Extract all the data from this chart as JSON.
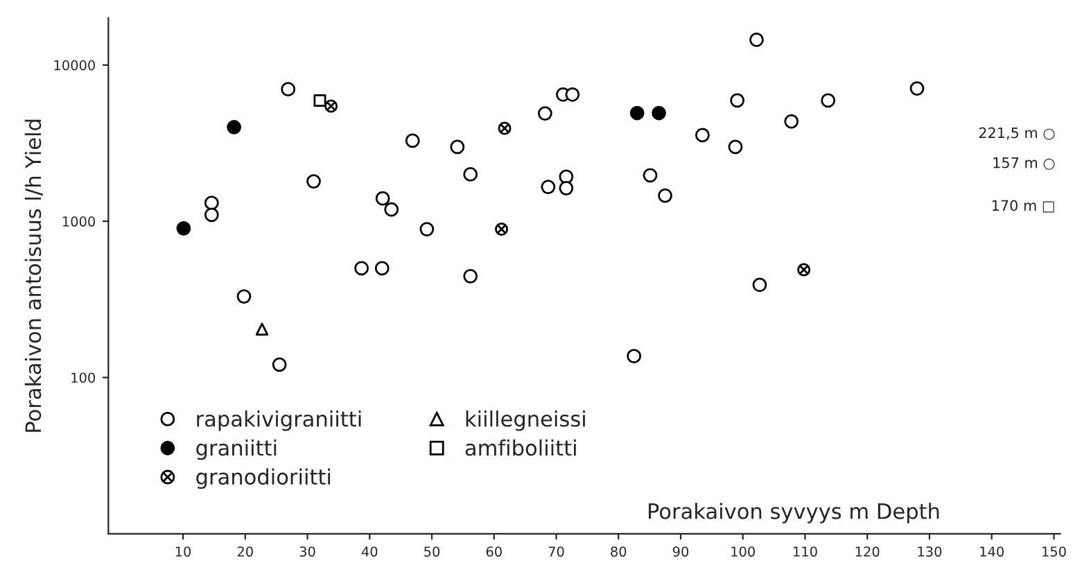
{
  "chart_data": {
    "type": "scatter",
    "xlabel": "Porakaivon syvyys m Depth",
    "ylabel": "Porakaivon antoisuus l/h Yield",
    "log": "y",
    "xlim": [
      -2,
      151
    ],
    "xticks": [
      10,
      20,
      30,
      40,
      50,
      60,
      70,
      80,
      90,
      100,
      110,
      120,
      130,
      140,
      150
    ],
    "ylim": [
      10,
      20000
    ],
    "yticks": [
      100,
      1000,
      10000
    ],
    "grid": false,
    "legend": "bottom left",
    "series": [
      {
        "name": "rapakivigraniitti",
        "color": "#ffffff",
        "marker": "circle",
        "x": [
          26.9,
          14.6,
          14.6,
          19.8,
          25.5,
          31.0,
          38.7,
          42.0,
          42.1,
          43.5,
          49.2,
          46.9,
          54.1,
          56.2,
          56.2,
          68.2,
          68.7,
          71.1,
          72.6,
          71.6,
          71.6,
          85.1,
          87.5,
          82.5,
          93.5,
          99.1,
          98.8,
          102.2,
          102.7,
          107.8,
          113.7,
          128.0
        ],
        "values": [
          7000,
          1310,
          1100,
          330,
          121,
          1800,
          500,
          500,
          1400,
          1190,
          890,
          3280,
          2990,
          2000,
          445,
          4900,
          1660,
          6480,
          6480,
          1930,
          1630,
          1970,
          1460,
          137,
          3560,
          5930,
          2990,
          14500,
          392,
          4360,
          5930,
          7080
        ]
      },
      {
        "name": "graniitti",
        "color": "#000000",
        "marker": "circle",
        "x": [
          10.1,
          18.2,
          83.0,
          86.5
        ],
        "values": [
          900,
          4000,
          4930,
          4930
        ]
      },
      {
        "name": "granodioriitti",
        "color": "#ffffff",
        "marker": "cross",
        "x": [
          33.8,
          61.7,
          61.2,
          109.8
        ],
        "values": [
          5460,
          3940,
          890,
          490
        ]
      },
      {
        "name": "kiillegneissi",
        "color": "#ffffff",
        "marker": "triangle",
        "x": [
          22.7
        ],
        "values": [
          204
        ]
      },
      {
        "name": "amfiboliitti",
        "color": "#ffffff",
        "marker": "square",
        "x": [
          32.0
        ],
        "values": [
          5930
        ]
      }
    ],
    "annotations": [
      "221,5 m ○",
      "157 m ○",
      "170 m □"
    ]
  }
}
